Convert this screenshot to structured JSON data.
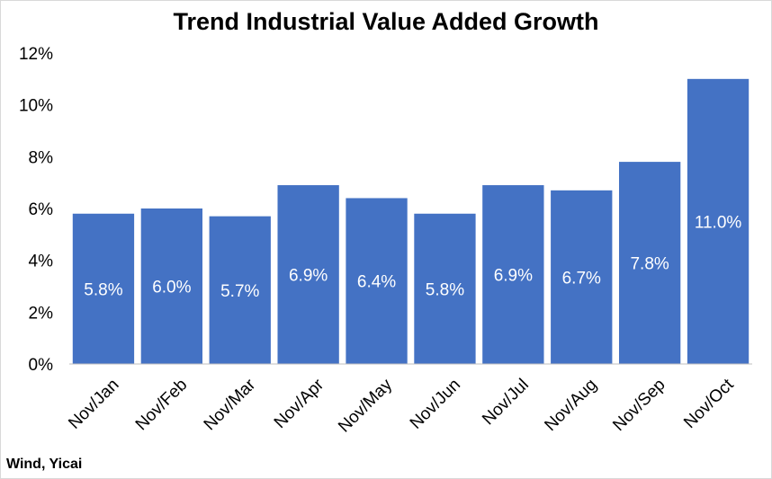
{
  "chart_data": {
    "type": "bar",
    "title": "Trend Industrial Value Added Growth",
    "categories": [
      "Nov/Jan",
      "Nov/Feb",
      "Nov/Mar",
      "Nov/Apr",
      "Nov/May",
      "Nov/Jun",
      "Nov/Jul",
      "Nov/Aug",
      "Nov/Sep",
      "Nov/Oct"
    ],
    "values": [
      5.8,
      6.0,
      5.7,
      6.9,
      6.4,
      5.8,
      6.9,
      6.7,
      7.8,
      11.0
    ],
    "data_labels": [
      "5.8%",
      "6.0%",
      "5.7%",
      "6.9%",
      "6.4%",
      "5.8%",
      "6.9%",
      "6.7%",
      "7.8%",
      "11.0%"
    ],
    "yticks": [
      "0%",
      "2%",
      "4%",
      "6%",
      "8%",
      "10%",
      "12%"
    ],
    "ylim": [
      0,
      12
    ],
    "bar_color": "#4472c4",
    "grid": false,
    "legend": "none"
  },
  "source": "Wind, Yicai"
}
